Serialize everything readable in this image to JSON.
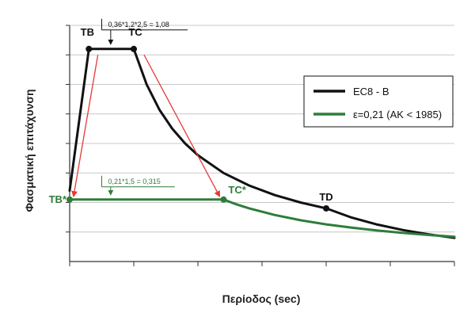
{
  "chart_data": {
    "type": "line",
    "title": "",
    "xlabel": "Περίοδος (sec)",
    "ylabel": "Φασματική επιτάχυνση",
    "xlim": [
      0,
      3
    ],
    "ylim": [
      0,
      1.2
    ],
    "x_ticks": [
      0,
      0.5,
      1.0,
      1.5,
      2.0,
      2.5,
      3.0
    ],
    "y_gridlines": [
      0.15,
      0.3,
      0.45,
      0.6,
      0.75,
      0.9,
      1.05,
      1.2
    ],
    "tick_labels_shown": false,
    "grid": true,
    "legend_position": "right",
    "series": [
      {
        "name": "EC8 - B",
        "color": "#111111",
        "points": [
          [
            0.0,
            0.36
          ],
          [
            0.15,
            1.08
          ],
          [
            0.5,
            1.08
          ],
          [
            0.6,
            0.9
          ],
          [
            0.7,
            0.771
          ],
          [
            0.8,
            0.675
          ],
          [
            0.9,
            0.6
          ],
          [
            1.0,
            0.54
          ],
          [
            1.2,
            0.45
          ],
          [
            1.4,
            0.386
          ],
          [
            1.6,
            0.3375
          ],
          [
            1.8,
            0.3
          ],
          [
            2.0,
            0.27
          ],
          [
            2.2,
            0.223
          ],
          [
            2.4,
            0.1875
          ],
          [
            2.6,
            0.16
          ],
          [
            2.8,
            0.138
          ],
          [
            3.0,
            0.12
          ]
        ]
      },
      {
        "name": "ε=0,21 (ΑΚ < 1985)",
        "color": "#2e7d3a",
        "points": [
          [
            0.0,
            0.315
          ],
          [
            1.2,
            0.315
          ],
          [
            1.3,
            0.2908
          ],
          [
            1.4,
            0.27
          ],
          [
            1.6,
            0.2363
          ],
          [
            1.8,
            0.21
          ],
          [
            2.0,
            0.189
          ],
          [
            2.2,
            0.1718
          ],
          [
            2.4,
            0.1575
          ],
          [
            2.6,
            0.1454
          ],
          [
            2.8,
            0.135
          ],
          [
            3.0,
            0.126
          ]
        ]
      }
    ],
    "points_labeled": [
      {
        "label": "TB",
        "series": 0,
        "x": 0.15,
        "y": 1.08,
        "color": "#111111"
      },
      {
        "label": "TC",
        "series": 0,
        "x": 0.5,
        "y": 1.08,
        "color": "#111111"
      },
      {
        "label": "TD",
        "series": 0,
        "x": 2.0,
        "y": 0.27,
        "color": "#111111"
      },
      {
        "label": "TB*",
        "series": 1,
        "x": 0.0,
        "y": 0.315,
        "color": "#2e7d3a"
      },
      {
        "label": "TC*",
        "series": 1,
        "x": 1.2,
        "y": 0.315,
        "color": "#2e7d3a"
      }
    ],
    "arrows": [
      {
        "from": [
          0.22,
          1.05
        ],
        "to": [
          0.03,
          0.33
        ],
        "color": "#e53935"
      },
      {
        "from": [
          0.58,
          1.05
        ],
        "to": [
          1.17,
          0.33
        ],
        "color": "#e53935"
      }
    ],
    "annotations": [
      {
        "text": "0,36*1,2*2,5 = 1,08",
        "color": "#111111",
        "target": [
          0.32,
          1.08
        ]
      },
      {
        "text": "0,21*1,5 = 0,315",
        "color": "#2e7d3a",
        "target": [
          0.32,
          0.315
        ]
      }
    ]
  }
}
